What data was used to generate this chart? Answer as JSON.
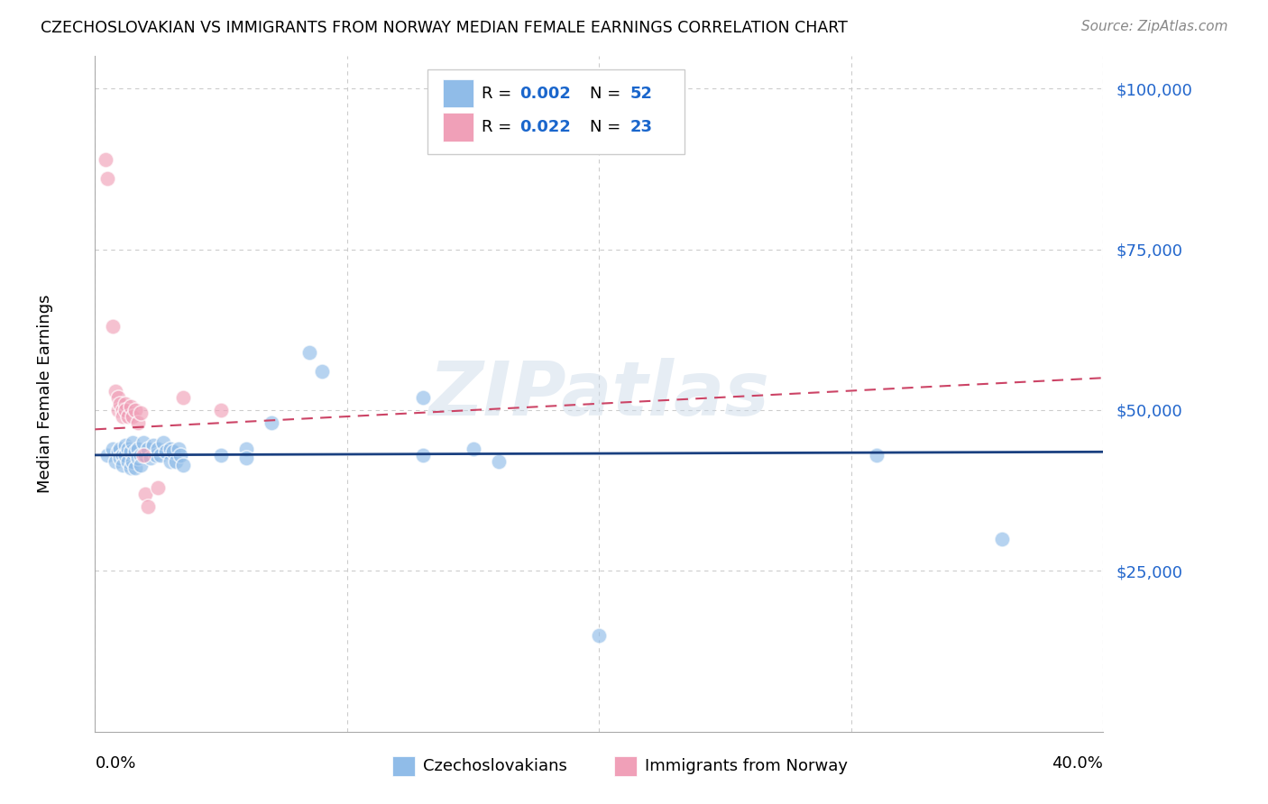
{
  "title": "CZECHOSLOVAKIAN VS IMMIGRANTS FROM NORWAY MEDIAN FEMALE EARNINGS CORRELATION CHART",
  "source": "Source: ZipAtlas.com",
  "ylabel": "Median Female Earnings",
  "y_ticks": [
    0,
    25000,
    50000,
    75000,
    100000
  ],
  "y_tick_labels": [
    "",
    "$25,000",
    "$50,000",
    "$75,000",
    "$100,000"
  ],
  "x_lim": [
    0.0,
    0.4
  ],
  "y_lim": [
    0,
    105000
  ],
  "legend_label1": "Czechoslovakians",
  "legend_label2": "Immigrants from Norway",
  "blue_color": "#90bce8",
  "pink_color": "#f0a0b8",
  "blue_line_color": "#1a4080",
  "pink_line_color": "#cc4466",
  "background_color": "#ffffff",
  "grid_color": "#cccccc",
  "blue_scatter": [
    [
      0.005,
      43000
    ],
    [
      0.007,
      44000
    ],
    [
      0.008,
      42000
    ],
    [
      0.009,
      43500
    ],
    [
      0.01,
      44000
    ],
    [
      0.01,
      42500
    ],
    [
      0.011,
      43000
    ],
    [
      0.011,
      41500
    ],
    [
      0.012,
      44500
    ],
    [
      0.012,
      43000
    ],
    [
      0.013,
      42000
    ],
    [
      0.013,
      44000
    ],
    [
      0.014,
      43500
    ],
    [
      0.014,
      41000
    ],
    [
      0.015,
      45000
    ],
    [
      0.015,
      42000
    ],
    [
      0.016,
      43500
    ],
    [
      0.016,
      41000
    ],
    [
      0.017,
      44000
    ],
    [
      0.017,
      42500
    ],
    [
      0.018,
      43000
    ],
    [
      0.018,
      41500
    ],
    [
      0.019,
      45000
    ],
    [
      0.02,
      43000
    ],
    [
      0.021,
      44000
    ],
    [
      0.022,
      42500
    ],
    [
      0.023,
      44500
    ],
    [
      0.024,
      43000
    ],
    [
      0.025,
      44000
    ],
    [
      0.026,
      43000
    ],
    [
      0.027,
      45000
    ],
    [
      0.028,
      43500
    ],
    [
      0.03,
      44000
    ],
    [
      0.03,
      42000
    ],
    [
      0.031,
      43500
    ],
    [
      0.032,
      42000
    ],
    [
      0.033,
      44000
    ],
    [
      0.034,
      43000
    ],
    [
      0.035,
      41500
    ],
    [
      0.05,
      43000
    ],
    [
      0.06,
      44000
    ],
    [
      0.06,
      42500
    ],
    [
      0.07,
      48000
    ],
    [
      0.085,
      59000
    ],
    [
      0.09,
      56000
    ],
    [
      0.13,
      52000
    ],
    [
      0.13,
      43000
    ],
    [
      0.15,
      44000
    ],
    [
      0.16,
      42000
    ],
    [
      0.2,
      15000
    ],
    [
      0.31,
      43000
    ],
    [
      0.36,
      30000
    ]
  ],
  "pink_scatter": [
    [
      0.004,
      89000
    ],
    [
      0.005,
      86000
    ],
    [
      0.007,
      63000
    ],
    [
      0.008,
      53000
    ],
    [
      0.009,
      52000
    ],
    [
      0.009,
      50000
    ],
    [
      0.01,
      51000
    ],
    [
      0.011,
      50000
    ],
    [
      0.011,
      49000
    ],
    [
      0.012,
      51000
    ],
    [
      0.012,
      50000
    ],
    [
      0.013,
      49000
    ],
    [
      0.014,
      50500
    ],
    [
      0.015,
      49000
    ],
    [
      0.016,
      50000
    ],
    [
      0.017,
      48000
    ],
    [
      0.018,
      49500
    ],
    [
      0.019,
      43000
    ],
    [
      0.02,
      37000
    ],
    [
      0.021,
      35000
    ],
    [
      0.025,
      38000
    ],
    [
      0.035,
      52000
    ],
    [
      0.05,
      50000
    ]
  ],
  "watermark": "ZIPatlas"
}
